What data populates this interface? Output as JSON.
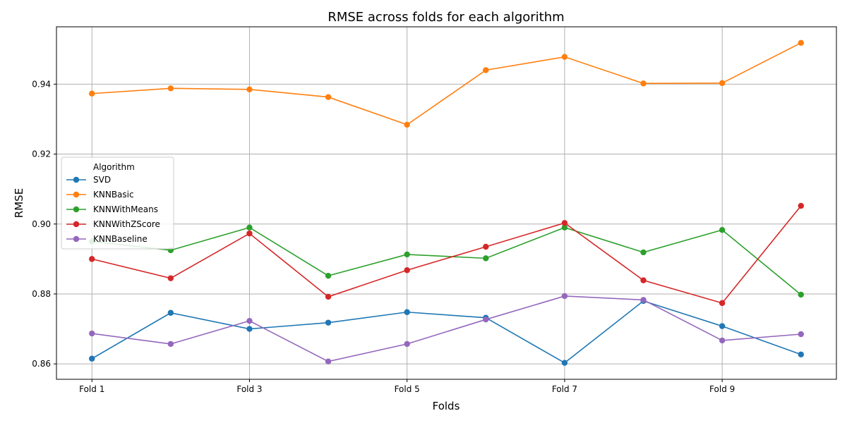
{
  "colors": {
    "SVD": "#1f77b4",
    "KNNBasic": "#ff7f0e",
    "KNNWithMeans": "#2ca02c",
    "KNNWithZScore": "#d62728",
    "KNNBaseline": "#9467bd",
    "grid": "#b0b0b0"
  },
  "chart_data": {
    "type": "line",
    "title": "RMSE across folds for each algorithm",
    "xlabel": "Folds",
    "ylabel": "RMSE",
    "x": [
      1,
      2,
      3,
      4,
      5,
      6,
      7,
      8,
      9,
      10
    ],
    "xticks": [
      {
        "x": 1,
        "label": "Fold 1"
      },
      {
        "x": 3,
        "label": "Fold 3"
      },
      {
        "x": 5,
        "label": "Fold 5"
      },
      {
        "x": 7,
        "label": "Fold 7"
      },
      {
        "x": 9,
        "label": "Fold 9"
      }
    ],
    "yticks": [
      {
        "y": 0.86,
        "label": "0.86"
      },
      {
        "y": 0.88,
        "label": "0.88"
      },
      {
        "y": 0.9,
        "label": "0.90"
      },
      {
        "y": 0.92,
        "label": "0.92"
      },
      {
        "y": 0.94,
        "label": "0.94"
      }
    ],
    "xlim": [
      0.55,
      10.45
    ],
    "ylim": [
      0.8556,
      0.9564
    ],
    "grid": true,
    "legend": {
      "title": "Algorithm",
      "placement": "center-left"
    },
    "series": [
      {
        "name": "SVD",
        "values": [
          0.8615,
          0.8746,
          0.87,
          0.8718,
          0.8748,
          0.8732,
          0.8603,
          0.878,
          0.8708,
          0.8627
        ]
      },
      {
        "name": "KNNBasic",
        "values": [
          0.9373,
          0.9388,
          0.9385,
          0.9363,
          0.9284,
          0.944,
          0.9478,
          0.9402,
          0.9403,
          0.9518
        ]
      },
      {
        "name": "KNNWithMeans",
        "values": [
          0.895,
          0.8925,
          0.899,
          0.8852,
          0.8913,
          0.8902,
          0.899,
          0.8919,
          0.8983,
          0.8798
        ]
      },
      {
        "name": "KNNWithZScore",
        "values": [
          0.89,
          0.8845,
          0.8973,
          0.8792,
          0.8868,
          0.8935,
          0.9003,
          0.8839,
          0.8774,
          0.9052
        ]
      },
      {
        "name": "KNNBaseline",
        "values": [
          0.8687,
          0.8657,
          0.8723,
          0.8607,
          0.8657,
          0.8727,
          0.8794,
          0.8783,
          0.8667,
          0.8685
        ]
      }
    ]
  }
}
